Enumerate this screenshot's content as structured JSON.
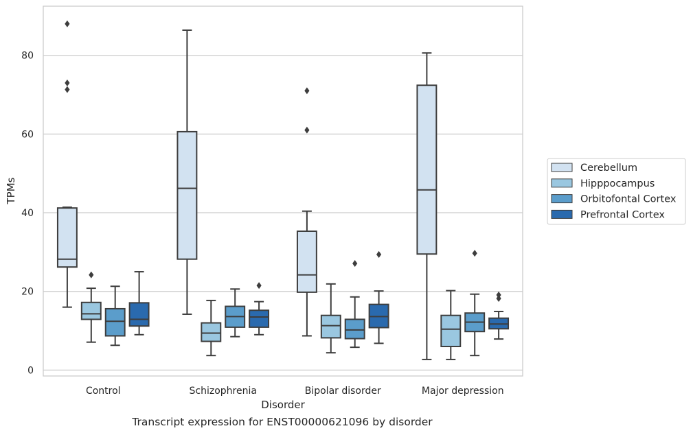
{
  "caption": "Transcript expression for ENST00000621096 by disorder",
  "chart_data": {
    "type": "box",
    "xlabel": "Disorder",
    "ylabel": "TPMs",
    "ylim": [
      -1.5,
      92.5
    ],
    "yticks": [
      0,
      20,
      40,
      60,
      80
    ],
    "grid": "horizontal",
    "legend_position": "right",
    "categories": [
      "Control",
      "Schizophrenia",
      "Bipolar disorder",
      "Major depression"
    ],
    "series": [
      {
        "name": "Cerebellum",
        "color": "#d2e2f1",
        "boxes": [
          {
            "whislo": 16,
            "q1": 26.2,
            "med": 28.2,
            "q3": 41.2,
            "whishi": 41.4,
            "fliers": [
              71.3,
              73,
              88
            ]
          },
          {
            "whislo": 14.2,
            "q1": 28.2,
            "med": 46.2,
            "q3": 60.6,
            "whishi": 86.4,
            "fliers": []
          },
          {
            "whislo": 8.7,
            "q1": 19.8,
            "med": 24.2,
            "q3": 35.3,
            "whishi": 40.4,
            "fliers": [
              61,
              71
            ]
          },
          {
            "whislo": 2.7,
            "q1": 29.5,
            "med": 45.8,
            "q3": 72.4,
            "whishi": 80.6,
            "fliers": []
          }
        ]
      },
      {
        "name": "Hipppocampus",
        "color": "#9ac7e0",
        "boxes": [
          {
            "whislo": 7.1,
            "q1": 12.9,
            "med": 14.3,
            "q3": 17.2,
            "whishi": 20.8,
            "fliers": [
              24.2
            ]
          },
          {
            "whislo": 3.7,
            "q1": 7.3,
            "med": 9.4,
            "q3": 12,
            "whishi": 17.7,
            "fliers": []
          },
          {
            "whislo": 4.4,
            "q1": 8.2,
            "med": 11.3,
            "q3": 13.9,
            "whishi": 21.9,
            "fliers": []
          },
          {
            "whislo": 2.7,
            "q1": 6,
            "med": 10.4,
            "q3": 13.9,
            "whishi": 20.2,
            "fliers": []
          }
        ]
      },
      {
        "name": "Orbitofontal Cortex",
        "color": "#5b9dcb",
        "boxes": [
          {
            "whislo": 6.3,
            "q1": 8.7,
            "med": 12.4,
            "q3": 15.6,
            "whishi": 21.3,
            "fliers": []
          },
          {
            "whislo": 8.5,
            "q1": 10.9,
            "med": 13.6,
            "q3": 16.2,
            "whishi": 20.6,
            "fliers": []
          },
          {
            "whislo": 5.8,
            "q1": 8,
            "med": 10.2,
            "q3": 12.9,
            "whishi": 18.6,
            "fliers": [
              27.1
            ]
          },
          {
            "whislo": 3.7,
            "q1": 9.8,
            "med": 12.2,
            "q3": 14.5,
            "whishi": 19.3,
            "fliers": [
              29.7
            ]
          }
        ]
      },
      {
        "name": "Prefrontal Cortex",
        "color": "#2a6aae",
        "boxes": [
          {
            "whislo": 9,
            "q1": 11.2,
            "med": 12.9,
            "q3": 17.1,
            "whishi": 25,
            "fliers": []
          },
          {
            "whislo": 9,
            "q1": 10.9,
            "med": 13.5,
            "q3": 15.2,
            "whishi": 17.4,
            "fliers": [
              21.5
            ]
          },
          {
            "whislo": 6.8,
            "q1": 10.8,
            "med": 13.6,
            "q3": 16.7,
            "whishi": 20.1,
            "fliers": [
              29.4
            ]
          },
          {
            "whislo": 7.9,
            "q1": 10.5,
            "med": 11.7,
            "q3": 13.2,
            "whishi": 14.9,
            "fliers": [
              18.2,
              19.1
            ]
          }
        ]
      }
    ]
  }
}
